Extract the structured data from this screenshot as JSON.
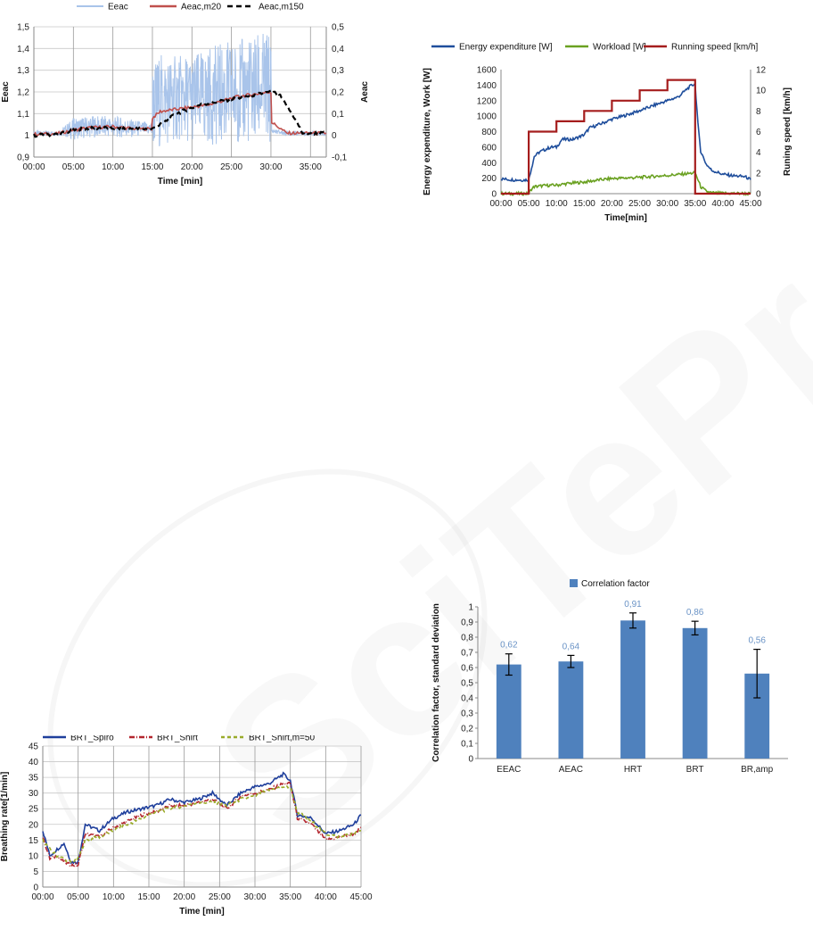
{
  "chart_data": [
    {
      "type": "line",
      "legend": [
        "Eeac",
        "Aeac,m20",
        "Aeac,m150"
      ],
      "xlabel": "Time [min]",
      "ylabel": "Eeac",
      "y2label": "Aeac",
      "x_ticks": [
        "00:00",
        "05:00",
        "10:00",
        "15:00",
        "20:00",
        "25:00",
        "30:00",
        "35:00"
      ],
      "y_ticks": [
        "0,9",
        "1",
        "1,1",
        "1,2",
        "1,3",
        "1,4",
        "1,5"
      ],
      "y2_ticks": [
        "-0,1",
        "0",
        "0,1",
        "0,2",
        "0,3",
        "0,4",
        "0,5"
      ],
      "xlim": [
        0,
        37
      ],
      "ylim": [
        0.9,
        1.5
      ],
      "y2lim": [
        -0.1,
        0.5
      ],
      "grid": true,
      "legend_position": "top",
      "series": [
        {
          "name": "Eeac",
          "color": "#a9c4ea",
          "axis": "left",
          "x": [
            0,
            3,
            5,
            7,
            10,
            13,
            14.9,
            15,
            16,
            18,
            20,
            22,
            24,
            26,
            28,
            30,
            30.1,
            32,
            35,
            37
          ],
          "y": [
            1.01,
            1.01,
            1.03,
            1.04,
            1.04,
            1.03,
            1.03,
            1.13,
            1.16,
            1.17,
            1.17,
            1.18,
            1.19,
            1.2,
            1.21,
            1.22,
            1.02,
            1.01,
            1.01,
            1.01
          ],
          "spread": [
            0.01,
            0.01,
            0.05,
            0.05,
            0.05,
            0.04,
            0.03,
            0.2,
            0.22,
            0.2,
            0.2,
            0.22,
            0.24,
            0.24,
            0.26,
            0.26,
            0.01,
            0.01,
            0.01,
            0.01
          ]
        },
        {
          "name": "Aeac,m20",
          "color": "#c0504d",
          "axis": "right",
          "x": [
            0,
            3,
            5,
            7,
            10,
            13,
            14.9,
            15,
            16,
            18,
            20,
            22,
            24,
            26,
            28,
            30,
            30.1,
            32,
            35,
            37
          ],
          "y": [
            0.005,
            0.008,
            0.025,
            0.035,
            0.04,
            0.03,
            0.03,
            0.08,
            0.11,
            0.12,
            0.13,
            0.14,
            0.16,
            0.18,
            0.19,
            0.2,
            0.06,
            0.01,
            0.01,
            0.01
          ]
        },
        {
          "name": "Aeac,m150",
          "color": "#000000",
          "axis": "right",
          "x": [
            0,
            3,
            6,
            9,
            12,
            15,
            16.5,
            18,
            21,
            24,
            27,
            30,
            31,
            33,
            34,
            37
          ],
          "y": [
            0.0,
            0.005,
            0.03,
            0.035,
            0.03,
            0.03,
            0.06,
            0.1,
            0.14,
            0.16,
            0.18,
            0.2,
            0.19,
            0.08,
            0.01,
            0.01
          ]
        }
      ]
    },
    {
      "type": "line",
      "legend": [
        "Energy expenditure [W]",
        "Workload [W]",
        "Running speed [km/h]"
      ],
      "xlabel": "Time[min]",
      "ylabel": "Energy expenditure, Work [W]",
      "y2label": "Runing speed [km/h]",
      "x_ticks": [
        "00:00",
        "05:00",
        "10:00",
        "15:00",
        "20:00",
        "25:00",
        "30:00",
        "35:00",
        "40:00",
        "45:00"
      ],
      "y_ticks": [
        "0",
        "200",
        "400",
        "600",
        "800",
        "1000",
        "1200",
        "1400",
        "1600"
      ],
      "y2_ticks": [
        "0",
        "2",
        "4",
        "6",
        "8",
        "10",
        "12"
      ],
      "xlim": [
        0,
        45
      ],
      "ylim": [
        0,
        1600
      ],
      "y2lim": [
        0,
        12
      ],
      "grid": false,
      "legend_position": "top",
      "series": [
        {
          "name": "Energy expenditure [W]",
          "color": "#1f4e9c",
          "axis": "left",
          "x": [
            0,
            2,
            4,
            5,
            5.5,
            6,
            7,
            9,
            10,
            11,
            13,
            15,
            16,
            18,
            20,
            22,
            25,
            28,
            30,
            32,
            34,
            35,
            35.5,
            36,
            37,
            38,
            40,
            42,
            44,
            45
          ],
          "y": [
            190,
            180,
            175,
            180,
            330,
            480,
            540,
            600,
            600,
            700,
            700,
            760,
            850,
            900,
            960,
            1000,
            1070,
            1150,
            1200,
            1250,
            1380,
            1420,
            900,
            550,
            380,
            300,
            250,
            230,
            220,
            180
          ]
        },
        {
          "name": "Workload [W]",
          "color": "#6aa121",
          "axis": "left",
          "x": [
            0,
            5,
            5.5,
            6,
            8,
            10,
            12,
            15,
            18,
            20,
            25,
            30,
            34,
            35,
            36,
            37,
            38,
            40,
            45
          ],
          "y": [
            0,
            0,
            60,
            90,
            105,
            110,
            130,
            150,
            180,
            195,
            210,
            235,
            260,
            270,
            90,
            30,
            10,
            5,
            0
          ]
        },
        {
          "name": "Running speed [km/h]",
          "color": "#a51d1d",
          "axis": "right",
          "step": true,
          "x": [
            0,
            5,
            5,
            10,
            10,
            15,
            15,
            20,
            20,
            25,
            25,
            30,
            30,
            35,
            35,
            45
          ],
          "y": [
            0,
            0,
            6,
            6,
            7,
            7,
            8,
            8,
            9,
            9,
            10,
            10,
            11,
            11,
            0,
            0
          ]
        }
      ]
    },
    {
      "type": "line",
      "legend": [
        "BRT_Spiro",
        "BRT_Shirt",
        "BRT_Shirt,m=50"
      ],
      "xlabel": "Time [min]",
      "ylabel": "Breathing rate[1/min]",
      "x_ticks": [
        "00:00",
        "05:00",
        "10:00",
        "15:00",
        "20:00",
        "25:00",
        "30:00",
        "35:00",
        "40:00",
        "45:00"
      ],
      "y_ticks": [
        "0",
        "5",
        "10",
        "15",
        "20",
        "25",
        "30",
        "35",
        "40",
        "45"
      ],
      "xlim": [
        0,
        45
      ],
      "ylim": [
        0,
        45
      ],
      "grid": true,
      "legend_position": "top",
      "series": [
        {
          "name": "BRT_Spiro",
          "color": "#1f3f9c",
          "dash": "none",
          "x": [
            0,
            1,
            2,
            3,
            4,
            5,
            6,
            8,
            10,
            12,
            14,
            16,
            18,
            20,
            22,
            24,
            26,
            28,
            30,
            32,
            34,
            35,
            36,
            38,
            40,
            42,
            44,
            45
          ],
          "y": [
            18,
            10,
            12,
            14,
            8,
            8,
            20,
            18,
            22,
            24,
            25,
            26,
            28,
            27,
            28,
            30,
            26,
            30,
            32,
            33,
            36,
            34,
            23,
            22,
            17,
            18,
            20,
            23
          ]
        },
        {
          "name": "BRT_Shirt",
          "color": "#b3262e",
          "dash": "6,2,1,2",
          "x": [
            0,
            1,
            2,
            3,
            4,
            5,
            6,
            8,
            10,
            12,
            14,
            16,
            18,
            20,
            22,
            24,
            26,
            28,
            30,
            32,
            34,
            35,
            36,
            38,
            40,
            42,
            44,
            45
          ],
          "y": [
            16,
            9,
            10,
            8,
            7,
            7,
            17,
            16,
            19,
            21,
            23,
            24,
            26,
            26,
            27,
            28,
            25,
            29,
            30,
            31,
            33,
            33,
            22,
            20,
            15,
            16,
            17,
            19
          ]
        },
        {
          "name": "BRT_Shirt,m=50",
          "color": "#9aab2a",
          "dash": "4,3",
          "x": [
            0,
            1,
            2,
            3,
            4,
            5,
            6,
            8,
            10,
            12,
            14,
            16,
            18,
            20,
            22,
            24,
            26,
            28,
            30,
            32,
            34,
            35,
            36,
            38,
            40,
            42,
            44,
            45
          ],
          "y": [
            15,
            12,
            10,
            9,
            8,
            9,
            15,
            16,
            18,
            20,
            22,
            24,
            25,
            26,
            27,
            27,
            26,
            28,
            29,
            31,
            32,
            32,
            24,
            21,
            17,
            16,
            17,
            18
          ]
        }
      ]
    },
    {
      "type": "bar",
      "legend": [
        "Correlation factor"
      ],
      "categories": [
        "EEAC",
        "AEAC",
        "HRT",
        "BRT",
        "BR,amp"
      ],
      "values": [
        0.62,
        0.64,
        0.91,
        0.86,
        0.56
      ],
      "value_labels": [
        "0,62",
        "0,64",
        "0,91",
        "0,86",
        "0,56"
      ],
      "errors": [
        0.07,
        0.04,
        0.05,
        0.045,
        0.16
      ],
      "color": "#4f81bd",
      "label_color": "#6a93c6",
      "ylabel": "Correlation factor, standard deviation",
      "y_ticks": [
        "0",
        "0,1",
        "0,2",
        "0,3",
        "0,4",
        "0,5",
        "0,6",
        "0,7",
        "0,8",
        "0,9",
        "1"
      ],
      "ylim": [
        0,
        1
      ],
      "grid": false,
      "legend_position": "top"
    }
  ]
}
